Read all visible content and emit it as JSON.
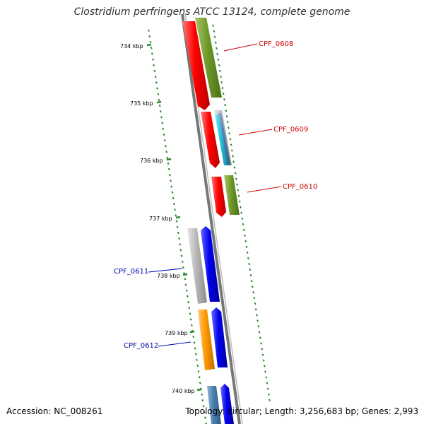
{
  "title": "Clostridium perfringens ATCC 13124, complete genome",
  "accession": "Accession: NC_008261",
  "topology": "Topology: circular; Length: 3,256,683 bp; Genes: 2,993",
  "kbp_labels": [
    "734 kbp",
    "735 kbp",
    "736 kbp",
    "737 kbp",
    "738 kbp",
    "739 kbp",
    "740 kbp"
  ],
  "gene_labels": {
    "forward": [
      "CPF_0608",
      "CPF_0609",
      "CPF_0610"
    ],
    "reverse": [
      "CPF_0611",
      "CPF_0612"
    ]
  },
  "colors": {
    "forward_label": "#cc0000",
    "reverse_label": "#0000aa",
    "tick": "#2a8a2a",
    "backbone": "#808080",
    "red": "#ff0000",
    "green": "#6f9a2a",
    "blue": "#0000ee",
    "gray": "#b8b8b8",
    "cyan": "#22c4d8",
    "steel": "#4a7fb0",
    "orange": "#ff9900"
  }
}
